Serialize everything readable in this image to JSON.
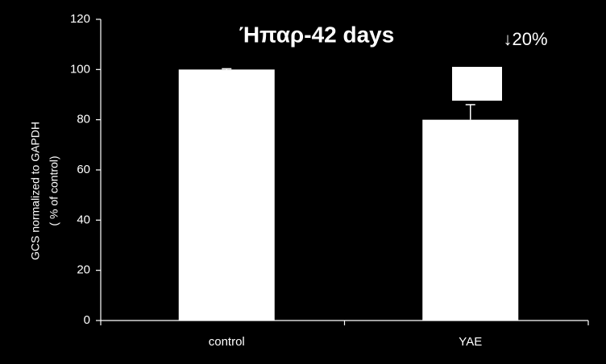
{
  "chart_data": {
    "type": "bar",
    "title": "Ήπαρ-42 days",
    "y_label": [
      "GCS normalized to GAPDH",
      "( % of control)"
    ],
    "annotation": "↓20%",
    "categories": [
      "control",
      "YAE"
    ],
    "values": [
      100,
      80
    ],
    "errors": [
      0.3,
      6
    ],
    "color": "#ffffff",
    "ylim": [
      0,
      120
    ],
    "yticks": [
      0,
      20,
      40,
      60,
      80,
      100,
      120
    ],
    "grid": false
  }
}
